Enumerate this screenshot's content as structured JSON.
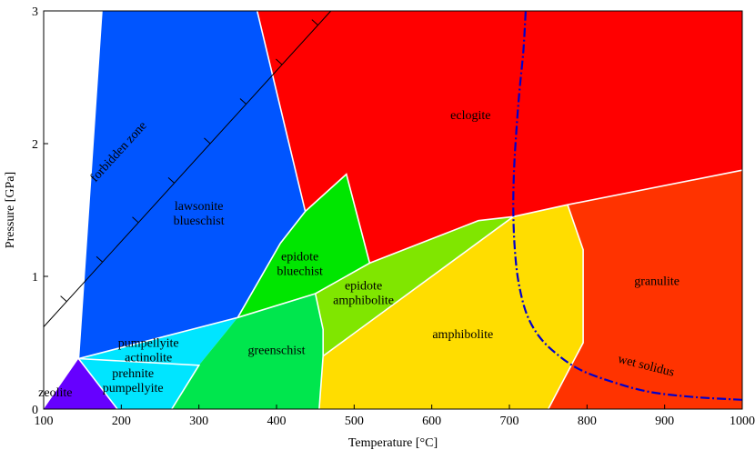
{
  "axes": {
    "x": {
      "label": "Temperature [°C]",
      "min": 100,
      "max": 1000,
      "ticks": [
        100,
        200,
        300,
        400,
        500,
        600,
        700,
        800,
        900,
        1000
      ]
    },
    "y": {
      "label": "Pressure [GPa]",
      "min": 0,
      "max": 3,
      "ticks": [
        0,
        1,
        2,
        3
      ]
    }
  },
  "facies": [
    {
      "id": "zeolite",
      "lines": [
        "zeolite"
      ],
      "color": "#6600ff",
      "label_at": [
        115,
        0.13
      ],
      "light": true,
      "polygon": [
        [
          100,
          0
        ],
        [
          145,
          0.38
        ],
        [
          195,
          0
        ]
      ]
    },
    {
      "id": "prehnite-pumpellyite",
      "lines": [
        "prehnite",
        "pumpellyite"
      ],
      "color": "#00e5ff",
      "label_at": [
        215,
        0.22
      ],
      "polygon": [
        [
          145,
          0.38
        ],
        [
          195,
          0
        ],
        [
          265,
          0
        ],
        [
          300,
          0.33
        ]
      ]
    },
    {
      "id": "pumpellyite-actinolite",
      "lines": [
        "pumpellyite",
        "actinolite"
      ],
      "color": "#00e5ff",
      "label_at": [
        235,
        0.45
      ],
      "polygon": [
        [
          145,
          0.38
        ],
        [
          300,
          0.33
        ],
        [
          350,
          0.69
        ]
      ]
    },
    {
      "id": "greenschist",
      "lines": [
        "greenschist"
      ],
      "color": "#00e64d",
      "label_at": [
        400,
        0.45
      ],
      "polygon": [
        [
          265,
          0
        ],
        [
          300,
          0.33
        ],
        [
          350,
          0.69
        ],
        [
          450,
          0.87
        ],
        [
          460,
          0.6
        ],
        [
          460,
          0.4
        ],
        [
          455,
          0
        ]
      ]
    },
    {
      "id": "epidote-bluechist",
      "lines": [
        "epidote",
        "bluechist"
      ],
      "color": "#00e600",
      "label_at": [
        430,
        1.1
      ],
      "polygon": [
        [
          350,
          0.69
        ],
        [
          405,
          1.25
        ],
        [
          437,
          1.49
        ],
        [
          490,
          1.77
        ],
        [
          520,
          1.1
        ],
        [
          450,
          0.87
        ]
      ]
    },
    {
      "id": "epidote-amphibolite",
      "lines": [
        "epidote",
        "amphibolite"
      ],
      "color": "#80e600",
      "label_at": [
        512,
        0.88
      ],
      "polygon": [
        [
          450,
          0.87
        ],
        [
          520,
          1.1
        ],
        [
          660,
          1.42
        ],
        [
          705,
          1.45
        ],
        [
          460,
          0.4
        ],
        [
          460,
          0.6
        ]
      ]
    },
    {
      "id": "amphibolite",
      "lines": [
        "amphibolite"
      ],
      "color": "#ffdd00",
      "label_at": [
        640,
        0.57
      ],
      "polygon": [
        [
          460,
          0.4
        ],
        [
          705,
          1.45
        ],
        [
          775,
          1.54
        ],
        [
          795,
          1.2
        ],
        [
          795,
          0.5
        ],
        [
          750,
          0
        ],
        [
          455,
          0
        ]
      ]
    },
    {
      "id": "granulite",
      "lines": [
        "granulite"
      ],
      "color": "#ff3300",
      "label_at": [
        890,
        0.97
      ],
      "polygon": [
        [
          775,
          1.54
        ],
        [
          1000,
          1.8
        ],
        [
          1000,
          0
        ],
        [
          750,
          0
        ],
        [
          795,
          0.5
        ],
        [
          795,
          1.2
        ]
      ]
    },
    {
      "id": "lawsonite-blueschist",
      "lines": [
        "lawsonite",
        "blueschist"
      ],
      "color": "#0055ff",
      "label_at": [
        300,
        1.48
      ],
      "light": true,
      "polygon": [
        [
          145,
          0.38
        ],
        [
          350,
          0.69
        ],
        [
          405,
          1.25
        ],
        [
          437,
          1.49
        ],
        [
          375,
          3.0
        ],
        [
          310,
          3.0
        ],
        [
          175,
          3.0
        ]
      ]
    },
    {
      "id": "eclogite",
      "lines": [
        "eclogite"
      ],
      "color": "#ff0000",
      "label_at": [
        650,
        2.22
      ],
      "polygon": [
        [
          375,
          3.0
        ],
        [
          1000,
          3.0
        ],
        [
          1000,
          1.8
        ],
        [
          775,
          1.54
        ],
        [
          705,
          1.45
        ],
        [
          660,
          1.42
        ],
        [
          520,
          1.1
        ],
        [
          490,
          1.77
        ],
        [
          437,
          1.49
        ]
      ]
    }
  ],
  "boundaries": [
    [
      [
        145,
        0.38
      ],
      [
        350,
        0.69
      ],
      [
        450,
        0.87
      ],
      [
        520,
        1.1
      ],
      [
        660,
        1.42
      ],
      [
        705,
        1.45
      ],
      [
        775,
        1.54
      ],
      [
        1000,
        1.8
      ]
    ],
    [
      [
        195,
        0
      ],
      [
        145,
        0.38
      ],
      [
        175,
        3.0
      ]
    ],
    [
      [
        145,
        0.38
      ],
      [
        300,
        0.33
      ],
      [
        265,
        0
      ]
    ],
    [
      [
        350,
        0.69
      ],
      [
        405,
        1.25
      ],
      [
        437,
        1.49
      ],
      [
        375,
        3.0
      ]
    ],
    [
      [
        437,
        1.49
      ],
      [
        490,
        1.77
      ],
      [
        520,
        1.1
      ]
    ],
    [
      [
        450,
        0.87
      ],
      [
        460,
        0.6
      ],
      [
        460,
        0.4
      ],
      [
        455,
        0
      ]
    ],
    [
      [
        460,
        0.4
      ],
      [
        705,
        1.45
      ]
    ],
    [
      [
        775,
        1.54
      ],
      [
        795,
        1.2
      ],
      [
        795,
        0.5
      ],
      [
        750,
        0
      ]
    ]
  ],
  "forbidden_zone": {
    "label": "forbidden zone",
    "line": [
      [
        100,
        0.62
      ],
      [
        470,
        3.0
      ]
    ],
    "label_at": [
      200,
      1.92
    ]
  },
  "wet_solidus": {
    "label": "wet solidus",
    "color": "#0000cc",
    "label_at": [
      875,
      0.3
    ],
    "points": [
      [
        1000,
        0.07
      ],
      [
        940,
        0.09
      ],
      [
        880,
        0.13
      ],
      [
        830,
        0.21
      ],
      [
        790,
        0.3
      ],
      [
        760,
        0.42
      ],
      [
        738,
        0.55
      ],
      [
        722,
        0.72
      ],
      [
        712,
        0.95
      ],
      [
        707,
        1.2
      ],
      [
        705,
        1.5
      ],
      [
        706,
        1.8
      ],
      [
        709,
        2.1
      ],
      [
        713,
        2.4
      ],
      [
        718,
        2.7
      ],
      [
        721,
        3.0
      ]
    ]
  }
}
